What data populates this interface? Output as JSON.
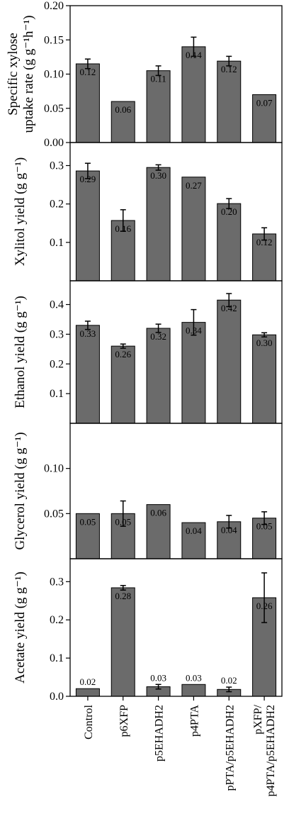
{
  "chart_data": [
    {
      "type": "bar",
      "ylabel": "Specific xylose uptake rate  (g g⁻¹h⁻¹)",
      "ylabel_lines": [
        "Specific xylose",
        "uptake rate  (g g⁻¹h⁻¹)"
      ],
      "ylim": [
        0,
        0.2
      ],
      "yticks": [
        0.0,
        0.05,
        0.1,
        0.15,
        0.2
      ],
      "ytick_labels": [
        "0.00",
        "0.05",
        "0.10",
        "0.15",
        "0.20"
      ],
      "values": [
        0.115,
        0.06,
        0.105,
        0.14,
        0.119,
        0.07
      ],
      "errors": [
        0.007,
        null,
        0.007,
        0.014,
        0.007,
        null
      ],
      "labels": [
        "0.12",
        "0.06",
        "0.11",
        "0.14",
        "0.12",
        "0.07"
      ],
      "label_pos": [
        "inside",
        "inside",
        "inside",
        "inside",
        "inside",
        "inside"
      ]
    },
    {
      "type": "bar",
      "ylabel": "Xylitol yield (g g⁻¹)",
      "ylabel_lines": [
        "Xylitol yield (g g⁻¹)"
      ],
      "ylim": [
        0,
        0.36
      ],
      "yticks": [
        0.1,
        0.2,
        0.3
      ],
      "ytick_labels": [
        "0.1",
        "0.2",
        "0.3"
      ],
      "values": [
        0.286,
        0.157,
        0.295,
        0.27,
        0.201,
        0.122
      ],
      "errors": [
        0.02,
        0.028,
        0.007,
        null,
        0.013,
        0.016
      ],
      "labels": [
        "0.29",
        "0.16",
        "0.30",
        "0.27",
        "0.20",
        "0.12"
      ],
      "label_pos": [
        "inside",
        "inside",
        "inside",
        "inside",
        "inside",
        "inside"
      ]
    },
    {
      "type": "bar",
      "ylabel": "Ethanol yield (g g⁻¹)",
      "ylabel_lines": [
        "Ethanol yield (g g⁻¹)"
      ],
      "ylim": [
        0,
        0.48
      ],
      "yticks": [
        0.1,
        0.2,
        0.3,
        0.4
      ],
      "ytick_labels": [
        "0.1",
        "0.2",
        "0.3",
        "0.4"
      ],
      "values": [
        0.33,
        0.26,
        0.32,
        0.34,
        0.415,
        0.298
      ],
      "errors": [
        0.014,
        0.007,
        0.014,
        0.043,
        0.022,
        0.007
      ],
      "labels": [
        "0.33",
        "0.26",
        "0.32",
        "0.34",
        "0.42",
        "0.30"
      ],
      "label_pos": [
        "inside",
        "inside",
        "inside",
        "inside",
        "inside",
        "inside"
      ]
    },
    {
      "type": "bar",
      "ylabel": "Glycerol yield (g g⁻¹)",
      "ylabel_lines": [
        "Glycerol yield (g g⁻¹)"
      ],
      "ylim": [
        0,
        0.15
      ],
      "yticks": [
        0.05,
        0.1
      ],
      "ytick_labels": [
        "0.05",
        "0.10"
      ],
      "values": [
        0.05,
        0.05,
        0.06,
        0.04,
        0.041,
        0.045
      ],
      "errors": [
        null,
        0.014,
        null,
        null,
        0.007,
        0.007
      ],
      "labels": [
        "0.05",
        "0.05",
        "0.06",
        "0.04",
        "0.04",
        "0.05"
      ],
      "label_pos": [
        "inside",
        "inside",
        "inside",
        "inside",
        "inside",
        "inside"
      ]
    },
    {
      "type": "bar",
      "ylabel": "Acetate yield (g g⁻¹)",
      "ylabel_lines": [
        "Acetate yield (g g⁻¹)"
      ],
      "ylim": [
        0,
        0.36
      ],
      "yticks": [
        0.0,
        0.1,
        0.2,
        0.3
      ],
      "ytick_labels": [
        "0.0",
        "0.1",
        "0.2",
        "0.3"
      ],
      "values": [
        0.02,
        0.284,
        0.025,
        0.031,
        0.018,
        0.258
      ],
      "errors": [
        null,
        0.006,
        0.006,
        null,
        0.006,
        0.065
      ],
      "labels": [
        "0.02",
        "0.28",
        "0.03",
        "0.03",
        "0.02",
        "0.26"
      ],
      "label_pos": [
        "above",
        "inside",
        "above",
        "above",
        "above",
        "inside"
      ]
    }
  ],
  "categories": [
    "Control",
    "p6XFP",
    "p5EHADH2",
    "p4PTA",
    "pPTA/p5EHADH2",
    "pXFP/ p4PTA/p5EHADH2"
  ],
  "category_lines": [
    [
      "Control"
    ],
    [
      "p6XFP"
    ],
    [
      "p5EHADH2"
    ],
    [
      "p4PTA"
    ],
    [
      "pPTA/p5EHADH2"
    ],
    [
      "pXFP/",
      "p4PTA/p5EHADH2"
    ]
  ],
  "colors": {
    "bar": "#6b6b6b",
    "axis": "#000000"
  }
}
